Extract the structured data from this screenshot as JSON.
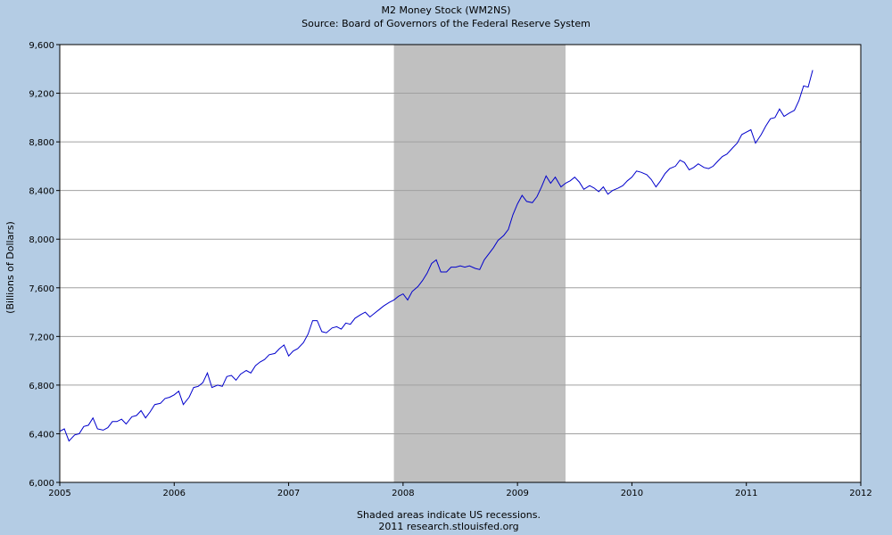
{
  "chart_data": {
    "type": "line",
    "title": "M2 Money Stock (WM2NS)",
    "subtitle": "Source: Board of Governors of the Federal Reserve System",
    "ylabel": "(Billions of Dollars)",
    "xlabel": "",
    "xlim": [
      2005,
      2012
    ],
    "ylim": [
      6000,
      9600
    ],
    "x_ticks": [
      2005,
      2006,
      2007,
      2008,
      2009,
      2010,
      2011,
      2012
    ],
    "x_tick_labels": [
      "2005",
      "2006",
      "2007",
      "2008",
      "2009",
      "2010",
      "2011",
      "2012"
    ],
    "y_ticks": [
      6000,
      6400,
      6800,
      7200,
      7600,
      8000,
      8400,
      8800,
      9200,
      9600
    ],
    "y_tick_labels": [
      "6,000",
      "6,400",
      "6,800",
      "7,200",
      "7,600",
      "8,000",
      "8,400",
      "8,800",
      "9,200",
      "9,600"
    ],
    "grid": "horizontal",
    "recessions": [
      {
        "start": 2007.92,
        "end": 2009.42
      }
    ],
    "footer_note": "Shaded areas indicate US recessions.",
    "footer_credit": "2011 research.stlouisfed.org",
    "colors": {
      "line": "#0000cc",
      "recession": "#c0c0c0",
      "background": "#b4cce4",
      "plot": "#ffffff",
      "grid": "#a0a0a0"
    },
    "series": [
      {
        "x": [
          2005.0,
          2005.04,
          2005.08,
          2005.13,
          2005.17,
          2005.21,
          2005.25,
          2005.29,
          2005.33,
          2005.38,
          2005.42,
          2005.46,
          2005.5,
          2005.54,
          2005.58,
          2005.63,
          2005.67,
          2005.71,
          2005.75,
          2005.79,
          2005.83,
          2005.88,
          2005.92,
          2005.96,
          2006.0,
          2006.04,
          2006.08,
          2006.13,
          2006.17,
          2006.21,
          2006.25,
          2006.29,
          2006.33,
          2006.38,
          2006.42,
          2006.46,
          2006.5,
          2006.54,
          2006.58,
          2006.63,
          2006.67,
          2006.71,
          2006.75,
          2006.79,
          2006.83,
          2006.88,
          2006.92,
          2006.96,
          2007.0,
          2007.04,
          2007.08,
          2007.13,
          2007.17,
          2007.21,
          2007.25,
          2007.29,
          2007.33,
          2007.38,
          2007.42,
          2007.46,
          2007.5,
          2007.54,
          2007.58,
          2007.63,
          2007.67,
          2007.71,
          2007.75,
          2007.79,
          2007.83,
          2007.88,
          2007.92,
          2007.96,
          2008.0,
          2008.04,
          2008.08,
          2008.13,
          2008.17,
          2008.21,
          2008.25,
          2008.29,
          2008.33,
          2008.38,
          2008.42,
          2008.46,
          2008.5,
          2008.54,
          2008.58,
          2008.63,
          2008.67,
          2008.71,
          2008.75,
          2008.79,
          2008.83,
          2008.88,
          2008.92,
          2008.96,
          2009.0,
          2009.04,
          2009.08,
          2009.13,
          2009.17,
          2009.21,
          2009.25,
          2009.29,
          2009.33,
          2009.38,
          2009.42,
          2009.46,
          2009.5,
          2009.54,
          2009.58,
          2009.63,
          2009.67,
          2009.71,
          2009.75,
          2009.79,
          2009.83,
          2009.88,
          2009.92,
          2009.96,
          2010.0,
          2010.04,
          2010.08,
          2010.13,
          2010.17,
          2010.21,
          2010.25,
          2010.29,
          2010.33,
          2010.38,
          2010.42,
          2010.46,
          2010.5,
          2010.54,
          2010.58,
          2010.63,
          2010.67,
          2010.71,
          2010.75,
          2010.79,
          2010.83,
          2010.88,
          2010.92,
          2010.96,
          2011.0,
          2011.04,
          2011.08,
          2011.13,
          2011.17,
          2011.21,
          2011.25,
          2011.29,
          2011.33,
          2011.38,
          2011.42,
          2011.46,
          2011.5,
          2011.54,
          2011.58
        ],
        "values": [
          6420,
          6440,
          6340,
          6390,
          6400,
          6460,
          6470,
          6530,
          6440,
          6430,
          6450,
          6500,
          6500,
          6520,
          6480,
          6540,
          6550,
          6590,
          6530,
          6580,
          6640,
          6650,
          6690,
          6700,
          6720,
          6750,
          6640,
          6700,
          6780,
          6790,
          6820,
          6900,
          6780,
          6800,
          6790,
          6870,
          6880,
          6840,
          6890,
          6920,
          6900,
          6960,
          6990,
          7010,
          7050,
          7060,
          7100,
          7130,
          7040,
          7080,
          7100,
          7150,
          7220,
          7330,
          7330,
          7240,
          7230,
          7270,
          7280,
          7260,
          7310,
          7300,
          7350,
          7380,
          7400,
          7360,
          7390,
          7420,
          7450,
          7480,
          7500,
          7530,
          7550,
          7500,
          7570,
          7610,
          7660,
          7720,
          7800,
          7830,
          7730,
          7730,
          7770,
          7770,
          7780,
          7770,
          7780,
          7760,
          7750,
          7830,
          7880,
          7930,
          7990,
          8030,
          8080,
          8200,
          8290,
          8360,
          8310,
          8300,
          8350,
          8430,
          8520,
          8460,
          8510,
          8430,
          8460,
          8480,
          8510,
          8470,
          8410,
          8440,
          8420,
          8390,
          8430,
          8370,
          8400,
          8420,
          8440,
          8480,
          8510,
          8560,
          8550,
          8530,
          8490,
          8430,
          8480,
          8540,
          8580,
          8600,
          8650,
          8630,
          8570,
          8590,
          8620,
          8590,
          8580,
          8600,
          8640,
          8680,
          8700,
          8750,
          8790,
          8860,
          8880,
          8900,
          8790,
          8860,
          8930,
          8990,
          9000,
          9070,
          9010,
          9040,
          9060,
          9140,
          9260,
          9250,
          9390
        ]
      }
    ]
  }
}
